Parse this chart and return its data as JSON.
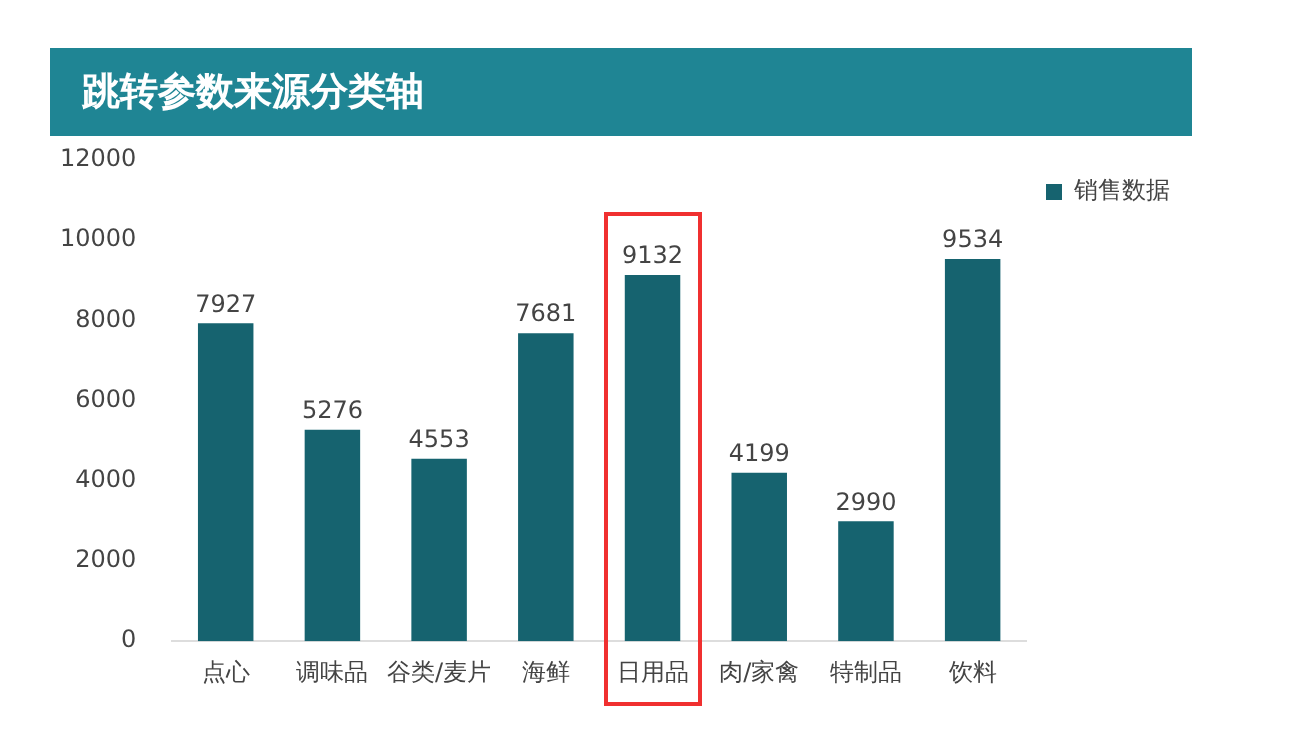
{
  "chart_data": {
    "type": "bar",
    "title": "跳转参数来源分类轴",
    "categories": [
      "点心",
      "调味品",
      "谷类/麦片",
      "海鲜",
      "日用品",
      "肉/家禽",
      "特制品",
      "饮料"
    ],
    "series": [
      {
        "name": "销售数据",
        "color": "#16636f",
        "values": [
          7927,
          5276,
          4553,
          7681,
          9132,
          4199,
          2990,
          9534
        ]
      }
    ],
    "ylim": [
      0,
      12000
    ],
    "yticks": [
      0,
      2000,
      4000,
      6000,
      8000,
      10000,
      12000
    ],
    "grid": false,
    "legend": "top right",
    "data_labels": true
  }
}
